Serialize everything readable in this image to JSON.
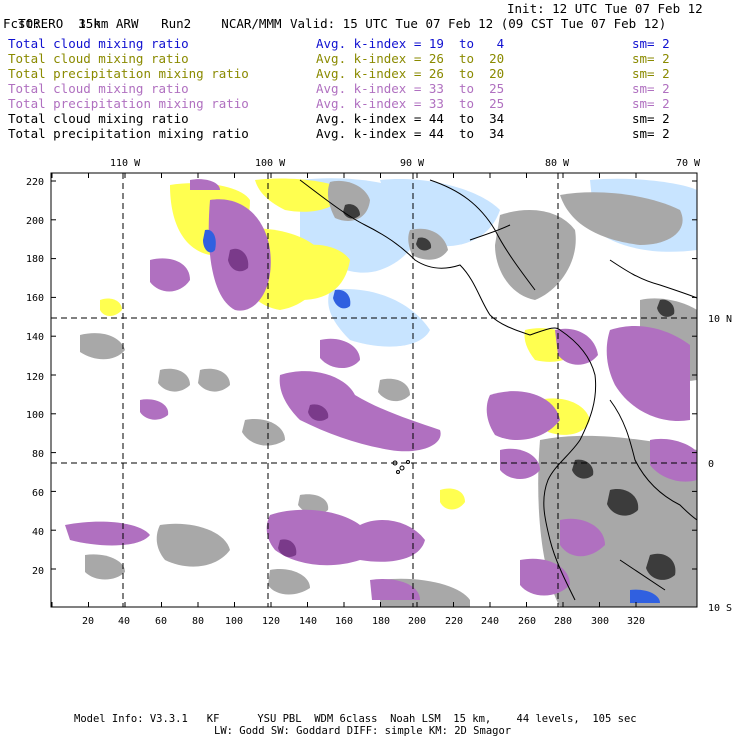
{
  "header": {
    "model": "TORERO",
    "resolution": "15km ARW",
    "run": "Run2",
    "center": "NCAR/MMM",
    "init": "Init: 12 UTC Tue 07 Feb 12",
    "fcst_label": "Fcst:",
    "fcst_value": "3 h",
    "valid": "Valid: 15 UTC Tue 07 Feb 12 (09 CST Tue 07 Feb 12)"
  },
  "legend": [
    {
      "field": "Total cloud mixing ratio",
      "kindex": "Avg. k-index =",
      "k_from": "19",
      "to": "to",
      "k_to": "4",
      "sm": "sm= 2",
      "color": "#1010d0"
    },
    {
      "field": "Total cloud mixing ratio",
      "kindex": "Avg. k-index =",
      "k_from": "26",
      "to": "to",
      "k_to": "20",
      "sm": "sm= 2",
      "color": "#8a8a00"
    },
    {
      "field": "Total precipitation mixing ratio",
      "kindex": "Avg. k-index =",
      "k_from": "26",
      "to": "to",
      "k_to": "20",
      "sm": "sm= 2",
      "color": "#8a8a00"
    },
    {
      "field": "Total cloud mixing ratio",
      "kindex": "Avg. k-index =",
      "k_from": "33",
      "to": "to",
      "k_to": "25",
      "sm": "sm= 2",
      "color": "#b070c0"
    },
    {
      "field": "Total precipitation mixing ratio",
      "kindex": "Avg. k-index =",
      "k_from": "33",
      "to": "to",
      "k_to": "25",
      "sm": "sm= 2",
      "color": "#b070c0"
    },
    {
      "field": "Total cloud mixing ratio",
      "kindex": "Avg. k-index =",
      "k_from": "44",
      "to": "to",
      "k_to": "34",
      "sm": "sm= 2",
      "color": "#000000"
    },
    {
      "field": "Total precipitation mixing ratio",
      "kindex": "Avg. k-index =",
      "k_from": "44",
      "to": "to",
      "k_to": "34",
      "sm": "sm= 2",
      "color": "#000000"
    }
  ],
  "map": {
    "lon_labels": [
      "110 W",
      "100 W",
      "90 W",
      "80 W",
      "70 W"
    ],
    "lat_labels": [
      "10 N",
      "0",
      "10 S"
    ],
    "y_ticks": [
      "220",
      "200",
      "180",
      "160",
      "140",
      "120",
      "100",
      "80",
      "60",
      "40",
      "20"
    ],
    "x_ticks": [
      "20",
      "40",
      "60",
      "80",
      "100",
      "120",
      "140",
      "160",
      "180",
      "200",
      "220",
      "240",
      "260",
      "280",
      "300",
      "320"
    ],
    "colors": {
      "gray": "#a8a8a8",
      "dark_gray": "#3c3c3c",
      "purple": "#b070c0",
      "dark_purple": "#7a3a8a",
      "yellow": "#ffff50",
      "light_blue": "#c8e4ff",
      "blue": "#3060e0"
    }
  },
  "footer": {
    "line1": "Model Info: V3.3.1   KF      YSU PBL  WDM 6class  Noah LSM  15 km,    44 levels,  105 sec",
    "line2": "LW: Godd SW: Goddard DIFF: simple KM: 2D Smagor"
  }
}
